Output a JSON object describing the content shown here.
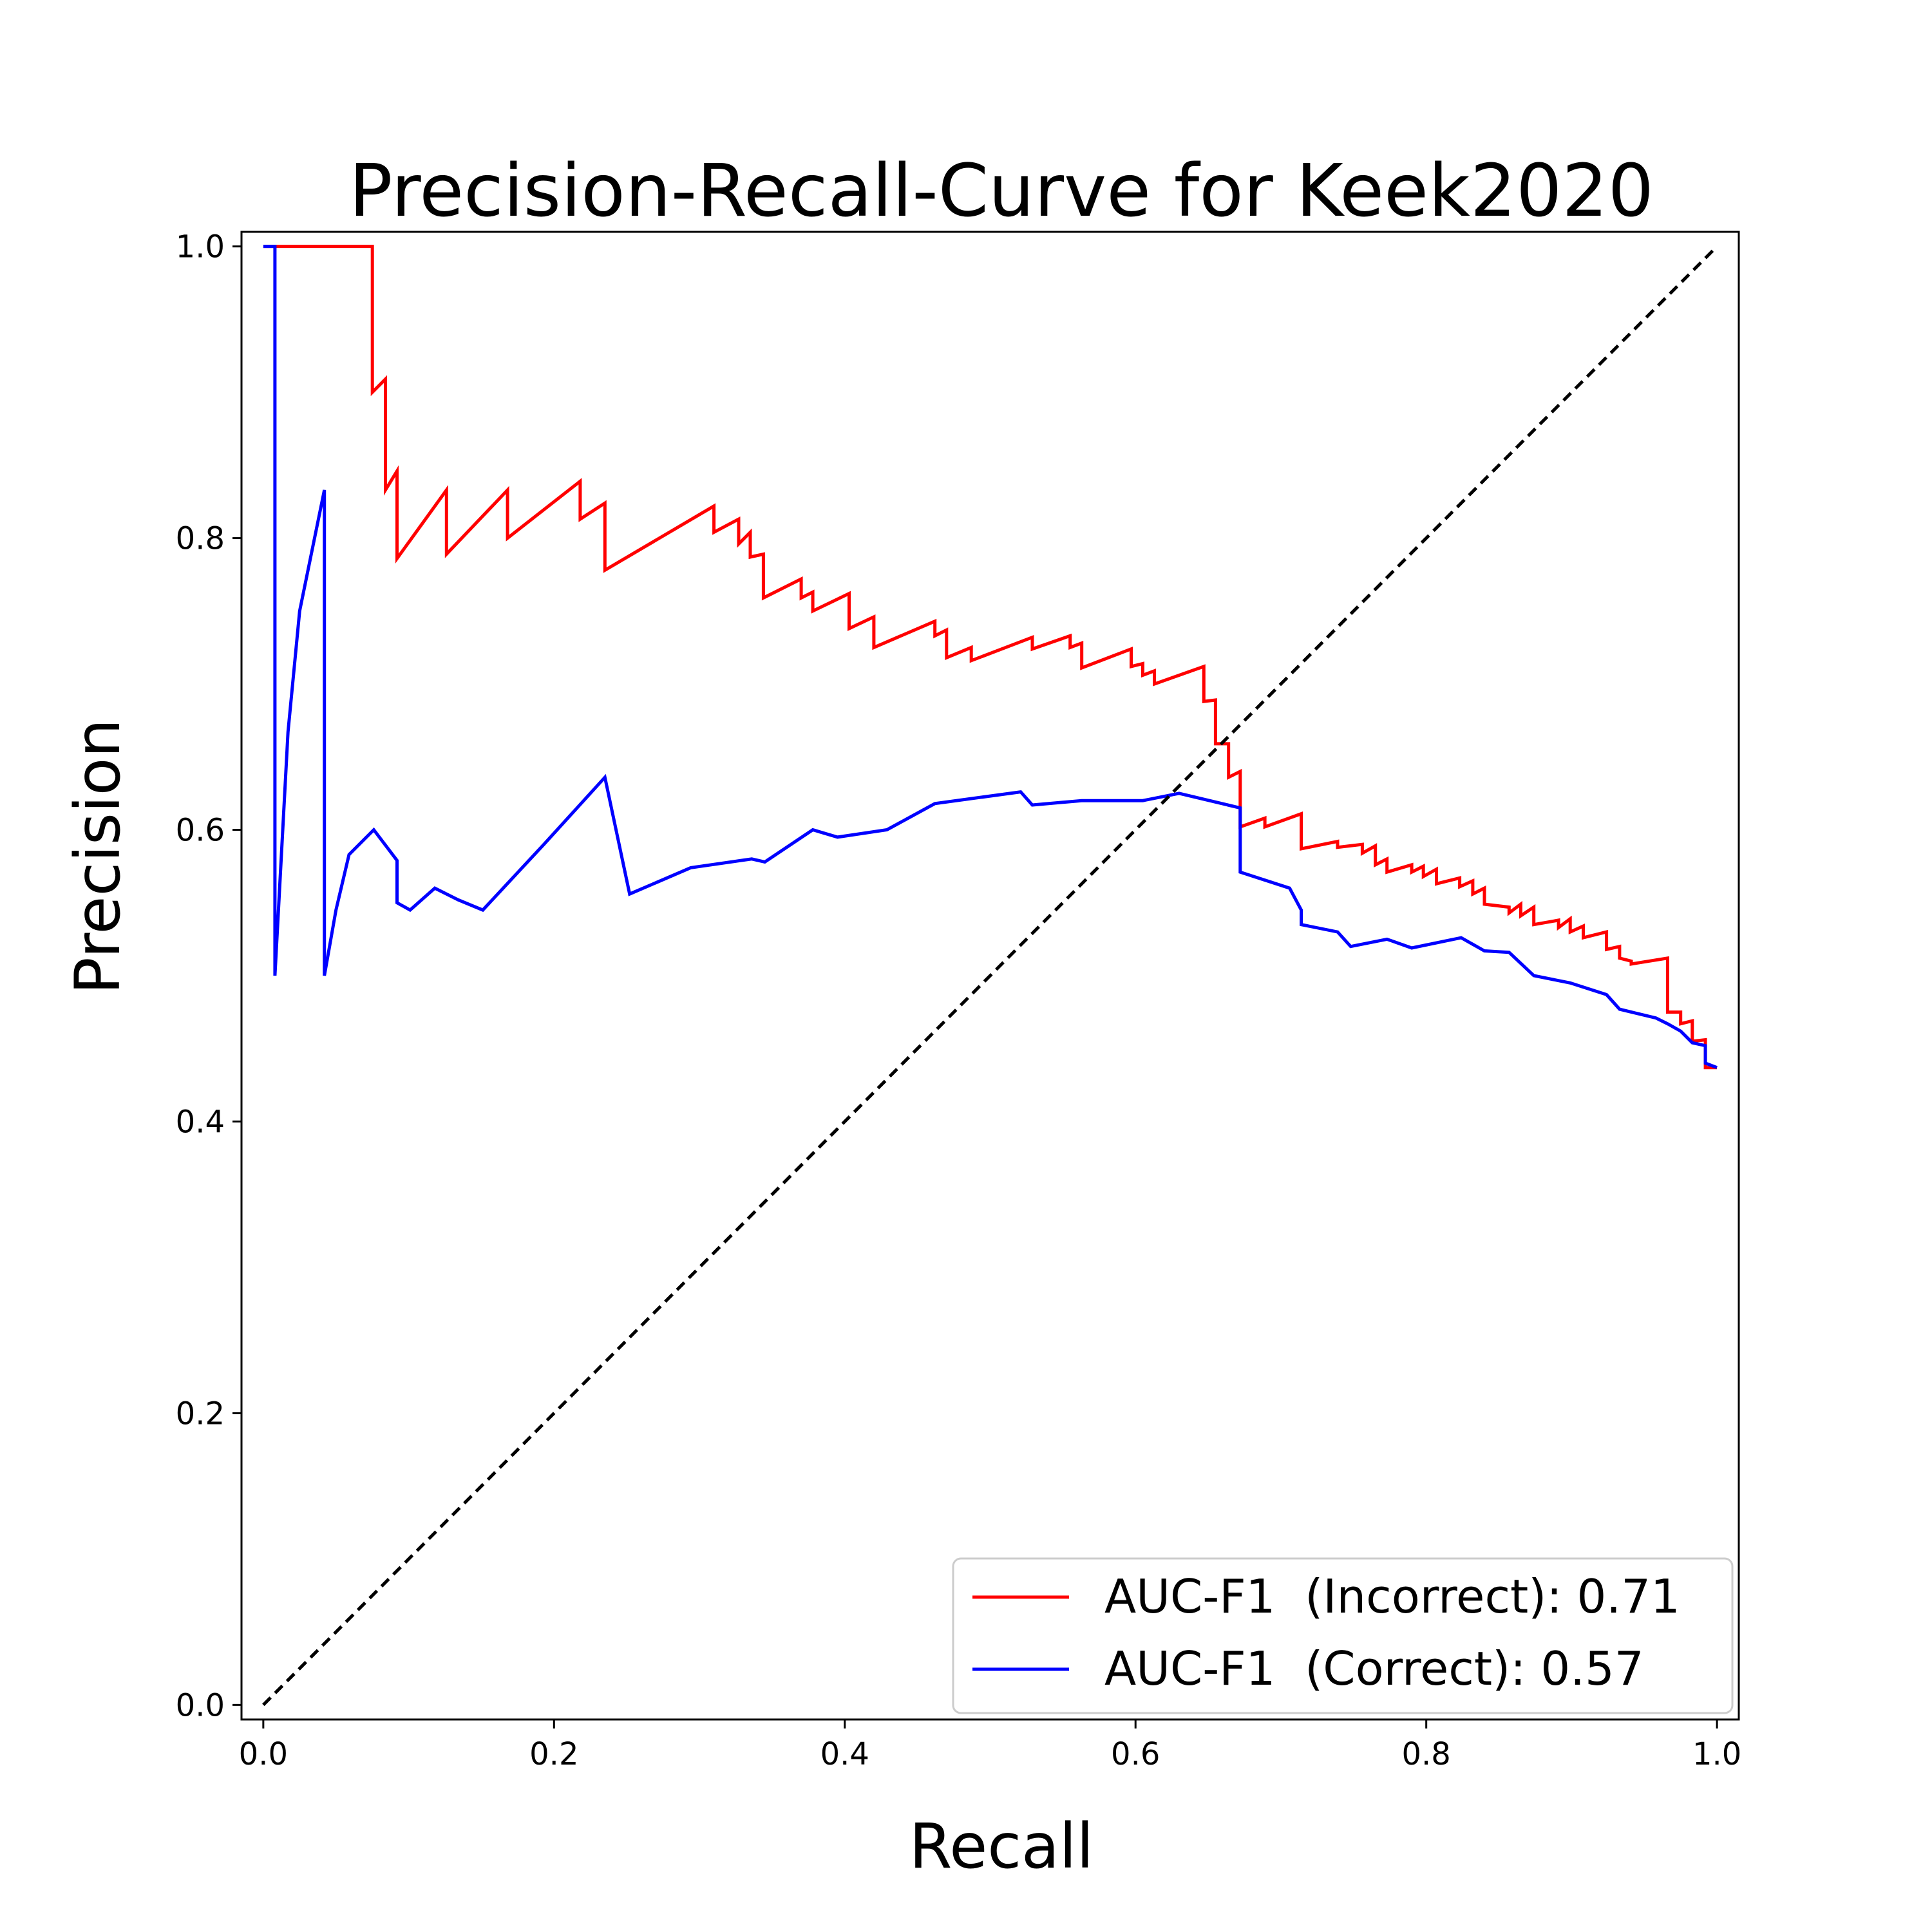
{
  "chart_data": {
    "type": "line",
    "title": "Precision-Recall-Curve for Keek2020",
    "xlabel": "Recall",
    "ylabel": "Precision",
    "xlim": [
      -0.015,
      1.015
    ],
    "ylim": [
      -0.01,
      1.01
    ],
    "xticks": [
      "0.0",
      "0.2",
      "0.4",
      "0.6",
      "0.8",
      "1.0"
    ],
    "yticks": [
      "0.0",
      "0.2",
      "0.4",
      "0.6",
      "0.8",
      "1.0"
    ],
    "legend_position": "lower-right",
    "diagonal": {
      "style": "dashed",
      "color": "#000000",
      "from": [
        0,
        0
      ],
      "to": [
        1,
        1
      ]
    },
    "series": [
      {
        "name": "AUC-F1  (Incorrect): 0.71",
        "color": "#ff0000",
        "x": [
          0.0,
          0.075,
          0.075,
          0.084,
          0.084,
          0.092,
          0.092,
          0.126,
          0.126,
          0.168,
          0.168,
          0.218,
          0.218,
          0.235,
          0.235,
          0.31,
          0.31,
          0.327,
          0.327,
          0.335,
          0.335,
          0.344,
          0.344,
          0.37,
          0.37,
          0.378,
          0.378,
          0.403,
          0.403,
          0.42,
          0.42,
          0.462,
          0.462,
          0.47,
          0.47,
          0.487,
          0.487,
          0.529,
          0.529,
          0.555,
          0.555,
          0.563,
          0.563,
          0.597,
          0.597,
          0.605,
          0.605,
          0.613,
          0.613,
          0.647,
          0.647,
          0.655,
          0.655,
          0.664,
          0.664,
          0.672,
          0.672,
          0.689,
          0.689,
          0.714,
          0.714,
          0.739,
          0.739,
          0.756,
          0.756,
          0.765,
          0.765,
          0.773,
          0.773,
          0.79,
          0.79,
          0.798,
          0.798,
          0.807,
          0.807,
          0.823,
          0.823,
          0.832,
          0.832,
          0.84,
          0.84,
          0.857,
          0.857,
          0.865,
          0.865,
          0.874,
          0.874,
          0.891,
          0.891,
          0.899,
          0.899,
          0.908,
          0.908,
          0.924,
          0.924,
          0.933,
          0.933,
          0.941,
          0.941,
          0.966,
          0.966,
          0.975,
          0.975,
          0.983,
          0.983,
          0.992,
          0.992,
          1.0
        ],
        "y": [
          1.0,
          1.0,
          0.9,
          0.909,
          0.833,
          0.846,
          0.786,
          0.833,
          0.789,
          0.833,
          0.8,
          0.839,
          0.813,
          0.824,
          0.778,
          0.822,
          0.804,
          0.813,
          0.796,
          0.804,
          0.787,
          0.789,
          0.759,
          0.772,
          0.759,
          0.763,
          0.75,
          0.762,
          0.738,
          0.746,
          0.725,
          0.743,
          0.733,
          0.737,
          0.718,
          0.725,
          0.716,
          0.732,
          0.724,
          0.733,
          0.725,
          0.728,
          0.711,
          0.724,
          0.712,
          0.714,
          0.706,
          0.709,
          0.7,
          0.712,
          0.688,
          0.689,
          0.659,
          0.659,
          0.636,
          0.64,
          0.602,
          0.608,
          0.602,
          0.611,
          0.587,
          0.592,
          0.588,
          0.59,
          0.584,
          0.589,
          0.576,
          0.58,
          0.571,
          0.576,
          0.571,
          0.575,
          0.568,
          0.573,
          0.563,
          0.567,
          0.561,
          0.565,
          0.556,
          0.56,
          0.549,
          0.547,
          0.543,
          0.549,
          0.541,
          0.547,
          0.535,
          0.538,
          0.533,
          0.539,
          0.53,
          0.534,
          0.526,
          0.53,
          0.518,
          0.52,
          0.512,
          0.51,
          0.508,
          0.512,
          0.475,
          0.475,
          0.467,
          0.469,
          0.455,
          0.456,
          0.437,
          0.437
        ]
      },
      {
        "name": "AUC-F1  (Correct): 0.57",
        "color": "#0000ff",
        "x": [
          0.0,
          0.008,
          0.008,
          0.017,
          0.025,
          0.042,
          0.042,
          0.05,
          0.059,
          0.076,
          0.092,
          0.092,
          0.101,
          0.118,
          0.134,
          0.151,
          0.193,
          0.235,
          0.252,
          0.294,
          0.336,
          0.345,
          0.378,
          0.395,
          0.429,
          0.462,
          0.521,
          0.529,
          0.563,
          0.605,
          0.63,
          0.672,
          0.672,
          0.706,
          0.714,
          0.714,
          0.739,
          0.748,
          0.773,
          0.79,
          0.824,
          0.84,
          0.857,
          0.874,
          0.899,
          0.924,
          0.933,
          0.958,
          0.966,
          0.975,
          0.983,
          0.992,
          0.992,
          1.0
        ],
        "y": [
          1.0,
          1.0,
          0.5,
          0.667,
          0.75,
          0.833,
          0.5,
          0.545,
          0.583,
          0.6,
          0.579,
          0.55,
          0.545,
          0.56,
          0.552,
          0.545,
          0.59,
          0.636,
          0.556,
          0.574,
          0.58,
          0.578,
          0.6,
          0.595,
          0.6,
          0.618,
          0.626,
          0.617,
          0.62,
          0.62,
          0.625,
          0.615,
          0.571,
          0.56,
          0.545,
          0.535,
          0.53,
          0.52,
          0.525,
          0.519,
          0.526,
          0.517,
          0.516,
          0.5,
          0.495,
          0.487,
          0.477,
          0.471,
          0.467,
          0.462,
          0.454,
          0.452,
          0.44,
          0.437
        ]
      }
    ]
  }
}
